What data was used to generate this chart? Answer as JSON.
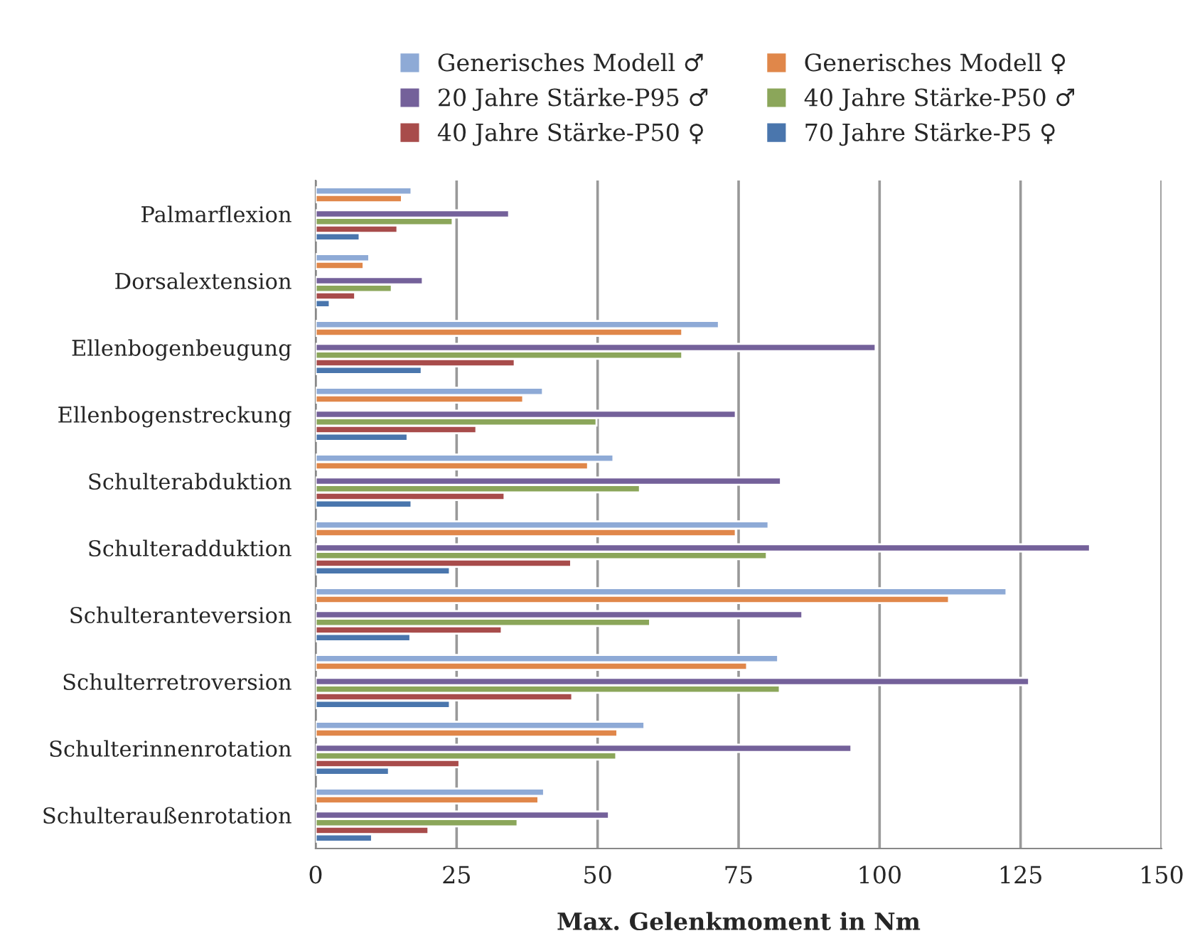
{
  "chart_data": {
    "type": "bar",
    "orientation": "horizontal",
    "xlabel": "Max. Gelenkmoment in Nm",
    "categories": [
      "Palmarflexion",
      "Dorsalextension",
      "Ellenbogenbeugung",
      "Ellenbogenstreckung",
      "Schulterabduktion",
      "Schulteradduktion",
      "Schulteranteversion",
      "Schulterretroversion",
      "Schulterinnenrotation",
      "Schulteraußenrotation"
    ],
    "series": [
      {
        "name": "Generisches Modell ♂",
        "color": "#8eaad6",
        "values": [
          17,
          9.5,
          71.5,
          40.3,
          52.8,
          80.3,
          122.5,
          82,
          58.3,
          40.5
        ]
      },
      {
        "name": "Generisches Modell ♀",
        "color": "#e0874a",
        "values": [
          15.3,
          8.5,
          65,
          36.8,
          48.3,
          74.5,
          112.3,
          76.5,
          53.5,
          39.5
        ]
      },
      {
        "name": "20 Jahre Stärke-P95 ♂",
        "color": "#74619a",
        "values": [
          34.3,
          19,
          99.3,
          74.5,
          82.5,
          137.3,
          86.3,
          126.5,
          95,
          52
        ]
      },
      {
        "name": "40 Jahre Stärke-P50 ♂",
        "color": "#8ba65a",
        "values": [
          24.3,
          13.5,
          65,
          49.8,
          57.5,
          80,
          59.3,
          82.3,
          53.3,
          35.8
        ]
      },
      {
        "name": "40 Jahre Stärke-P50 ♀",
        "color": "#a84c4b",
        "values": [
          14.5,
          7,
          35.3,
          28.5,
          33.5,
          45.3,
          33,
          45.5,
          25.5,
          20
        ]
      },
      {
        "name": "70 Jahre Stärke-P5 ♀",
        "color": "#4a76ad",
        "values": [
          7.8,
          2.5,
          18.8,
          16.3,
          17,
          23.8,
          16.8,
          23.8,
          13,
          10
        ]
      }
    ],
    "xlim": [
      0,
      150
    ],
    "xticks": [
      0,
      25,
      50,
      75,
      100,
      125,
      150
    ],
    "grid": "x",
    "legend": "top"
  }
}
